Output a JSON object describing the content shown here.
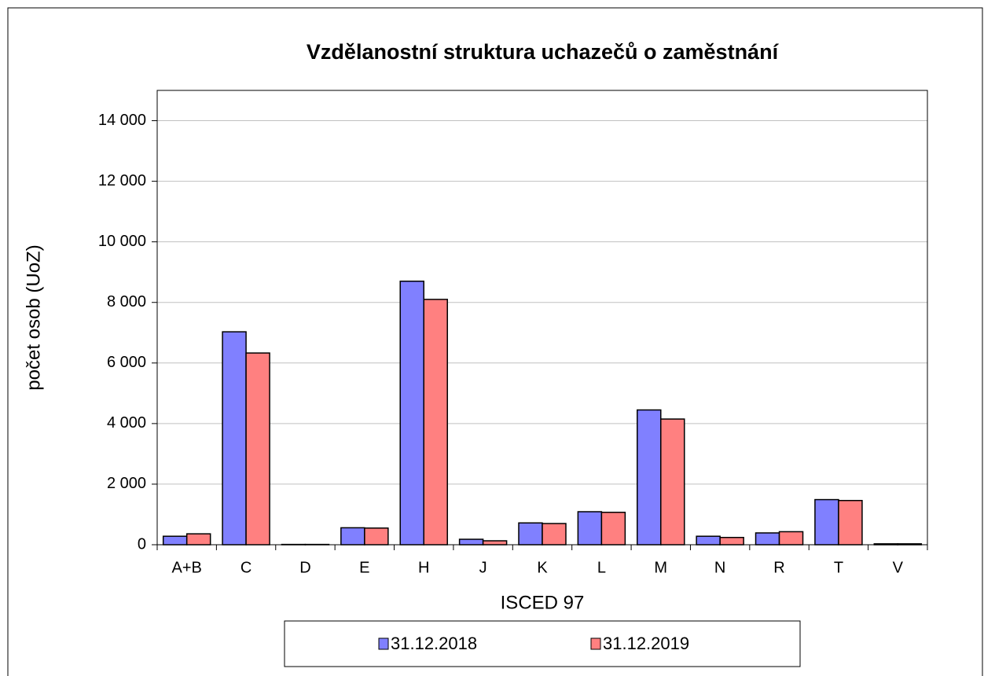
{
  "chart_data": {
    "type": "bar",
    "title": "Vzdělanostní struktura uchazečů o zaměstnání",
    "x_label": "ISCED 97",
    "y_label": "počet osob (UoZ)",
    "categories": [
      "A+B",
      "C",
      "D",
      "E",
      "H",
      "J",
      "K",
      "L",
      "M",
      "N",
      "R",
      "T",
      "V"
    ],
    "series": [
      {
        "name": "31.12.2018",
        "color": "#8080ff",
        "values": [
          280,
          7030,
          10,
          560,
          8700,
          180,
          720,
          1090,
          4450,
          280,
          390,
          1490,
          30
        ]
      },
      {
        "name": "31.12.2019",
        "color": "#ff8080",
        "values": [
          360,
          6330,
          10,
          550,
          8100,
          130,
          700,
          1070,
          4150,
          240,
          430,
          1460,
          30
        ]
      }
    ],
    "ylim": [
      0,
      15000
    ],
    "yticks": [
      0,
      {
        "value": 2000,
        "label": "2 000"
      },
      {
        "value": 4000,
        "label": "4 000"
      },
      {
        "value": 6000,
        "label": "6 000"
      },
      {
        "value": 8000,
        "label": "8 000"
      },
      {
        "value": 10000,
        "label": "10 000"
      },
      {
        "value": 12000,
        "label": "12 000"
      },
      {
        "value": 14000,
        "label": "14 000"
      }
    ],
    "grid": true,
    "legend": "bottom"
  }
}
